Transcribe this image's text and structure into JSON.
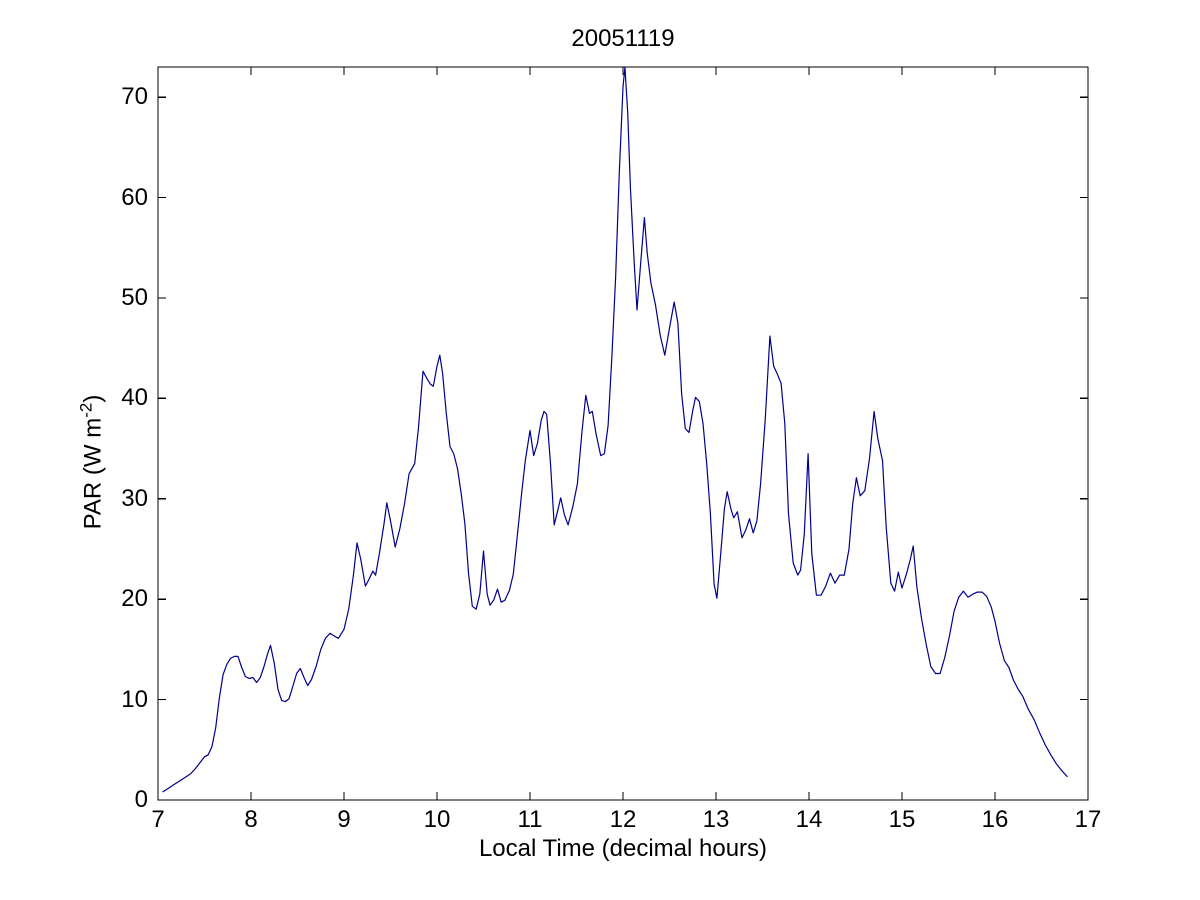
{
  "chart_data": {
    "type": "line",
    "title": "20051119",
    "xlabel": "Local Time (decimal hours)",
    "ylabel": "PAR (W m⁻²)",
    "ylabel_parts": {
      "prefix": "PAR (W m",
      "superscript": "-2",
      "suffix": ")"
    },
    "xlim": [
      7,
      17
    ],
    "ylim": [
      0,
      73
    ],
    "xticks": [
      7,
      8,
      9,
      10,
      11,
      12,
      13,
      14,
      15,
      16,
      17
    ],
    "yticks": [
      0,
      10,
      20,
      30,
      40,
      50,
      60,
      70
    ],
    "grid": false,
    "line_color": "#00008B",
    "axis_color": "#000000",
    "background_color": "#ffffff",
    "series": [
      {
        "x": [
          7.05,
          7.1,
          7.15,
          7.2,
          7.25,
          7.3,
          7.35,
          7.4,
          7.45,
          7.5,
          7.54,
          7.58,
          7.62,
          7.66,
          7.7,
          7.74,
          7.78,
          7.82,
          7.86,
          7.9,
          7.94,
          7.98,
          8.02,
          8.06,
          8.1,
          8.14,
          8.18,
          8.21,
          8.25,
          8.29,
          8.33,
          8.37,
          8.41,
          8.45,
          8.49,
          8.53,
          8.57,
          8.61,
          8.65,
          8.7,
          8.75,
          8.8,
          8.85,
          8.9,
          8.94,
          9.0,
          9.05,
          9.1,
          9.14,
          9.18,
          9.23,
          9.27,
          9.31,
          9.34,
          9.38,
          9.43,
          9.46,
          9.5,
          9.55,
          9.6,
          9.65,
          9.7,
          9.73,
          9.76,
          9.8,
          9.85,
          9.89,
          9.93,
          9.96,
          10.0,
          10.03,
          10.06,
          10.1,
          10.14,
          10.18,
          10.22,
          10.26,
          10.3,
          10.34,
          10.38,
          10.42,
          10.46,
          10.5,
          10.54,
          10.57,
          10.61,
          10.65,
          10.69,
          10.73,
          10.78,
          10.82,
          10.86,
          10.91,
          10.95,
          11.0,
          11.04,
          11.08,
          11.12,
          11.15,
          11.18,
          11.22,
          11.26,
          11.3,
          11.33,
          11.37,
          11.41,
          11.46,
          11.51,
          11.56,
          11.6,
          11.64,
          11.67,
          11.71,
          11.76,
          11.8,
          11.84,
          11.88,
          11.92,
          11.96,
          12.0,
          12.02,
          12.05,
          12.08,
          12.12,
          12.15,
          12.19,
          12.23,
          12.26,
          12.3,
          12.35,
          12.4,
          12.45,
          12.5,
          12.55,
          12.59,
          12.63,
          12.67,
          12.71,
          12.75,
          12.78,
          12.82,
          12.86,
          12.9,
          12.94,
          12.98,
          13.01,
          13.05,
          13.09,
          13.12,
          13.16,
          13.19,
          13.23,
          13.28,
          13.32,
          13.36,
          13.4,
          13.44,
          13.48,
          13.53,
          13.58,
          13.62,
          13.66,
          13.7,
          13.74,
          13.78,
          13.83,
          13.88,
          13.91,
          13.95,
          13.99,
          14.03,
          14.08,
          14.13,
          14.18,
          14.23,
          14.28,
          14.33,
          14.38,
          14.43,
          14.47,
          14.51,
          14.55,
          14.6,
          14.65,
          14.7,
          14.74,
          14.79,
          14.83,
          14.88,
          14.92,
          14.96,
          15.0,
          15.05,
          15.09,
          15.12,
          15.16,
          15.21,
          15.26,
          15.31,
          15.36,
          15.41,
          15.46,
          15.51,
          15.56,
          15.61,
          15.66,
          15.71,
          15.76,
          15.81,
          15.86,
          15.91,
          15.96,
          16.0,
          16.05,
          16.1,
          16.15,
          16.2,
          16.25,
          16.3,
          16.36,
          16.42,
          16.48,
          16.54,
          16.6,
          16.66,
          16.72,
          16.78
        ],
        "y": [
          0.8,
          1.1,
          1.4,
          1.7,
          2.0,
          2.3,
          2.6,
          3.1,
          3.7,
          4.3,
          4.5,
          5.3,
          7.2,
          10.2,
          12.5,
          13.5,
          14.1,
          14.3,
          14.3,
          13.2,
          12.3,
          12.1,
          12.2,
          11.7,
          12.2,
          13.3,
          14.6,
          15.4,
          13.6,
          11.0,
          9.9,
          9.8,
          10.1,
          11.3,
          12.6,
          13.1,
          12.2,
          11.4,
          12.0,
          13.3,
          15.0,
          16.1,
          16.6,
          16.3,
          16.1,
          17.0,
          19.0,
          22.3,
          25.6,
          24.0,
          21.3,
          22.0,
          22.8,
          22.4,
          24.5,
          27.5,
          29.6,
          27.8,
          25.2,
          27.0,
          29.5,
          32.5,
          33.0,
          33.5,
          37.0,
          42.7,
          42.0,
          41.4,
          41.2,
          43.2,
          44.3,
          42.5,
          38.5,
          35.2,
          34.5,
          33.0,
          30.5,
          27.5,
          22.5,
          19.3,
          19.0,
          20.5,
          24.8,
          20.5,
          19.4,
          19.9,
          21.0,
          19.7,
          19.9,
          20.9,
          22.5,
          26.0,
          30.5,
          33.8,
          36.8,
          34.3,
          35.5,
          37.8,
          38.7,
          38.4,
          33.5,
          27.4,
          28.9,
          30.1,
          28.4,
          27.4,
          29.2,
          31.5,
          36.8,
          40.3,
          38.5,
          38.7,
          36.5,
          34.3,
          34.5,
          37.3,
          44.0,
          52.0,
          62.5,
          71.0,
          73.0,
          68.5,
          61.0,
          53.5,
          48.8,
          53.5,
          58.0,
          54.5,
          51.5,
          49.3,
          46.3,
          44.3,
          47.0,
          49.6,
          47.5,
          40.5,
          37.0,
          36.6,
          38.8,
          40.1,
          39.7,
          37.5,
          33.5,
          28.5,
          21.5,
          20.1,
          24.5,
          29.0,
          30.7,
          29.0,
          28.1,
          28.7,
          26.1,
          26.9,
          28.0,
          26.6,
          27.8,
          31.5,
          38.0,
          46.2,
          43.2,
          42.4,
          41.5,
          37.5,
          28.5,
          23.6,
          22.4,
          22.9,
          26.5,
          34.5,
          24.5,
          20.4,
          20.4,
          21.3,
          22.6,
          21.6,
          22.4,
          22.4,
          25.0,
          29.5,
          32.1,
          30.3,
          30.8,
          34.0,
          38.7,
          36.0,
          33.8,
          27.2,
          21.6,
          20.8,
          22.7,
          21.1,
          22.6,
          24.0,
          25.3,
          21.2,
          18.1,
          15.5,
          13.3,
          12.6,
          12.6,
          14.2,
          16.3,
          18.8,
          20.2,
          20.8,
          20.2,
          20.5,
          20.7,
          20.7,
          20.3,
          19.2,
          17.8,
          15.6,
          13.9,
          13.2,
          11.9,
          11.0,
          10.3,
          9.0,
          8.0,
          6.7,
          5.5,
          4.5,
          3.6,
          2.9,
          2.3
        ]
      }
    ]
  }
}
